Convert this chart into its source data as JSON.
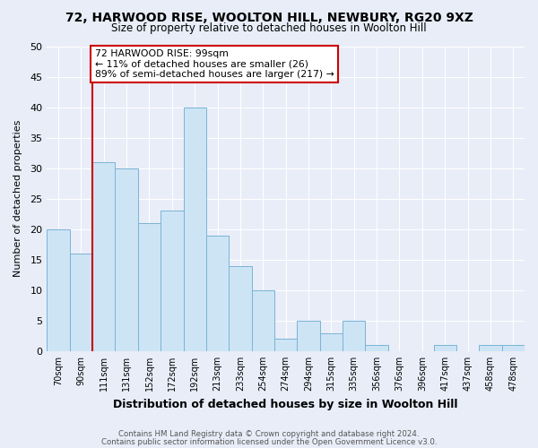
{
  "title1": "72, HARWOOD RISE, WOOLTON HILL, NEWBURY, RG20 9XZ",
  "title2": "Size of property relative to detached houses in Woolton Hill",
  "xlabel": "Distribution of detached houses by size in Woolton Hill",
  "ylabel": "Number of detached properties",
  "footer1": "Contains HM Land Registry data © Crown copyright and database right 2024.",
  "footer2": "Contains public sector information licensed under the Open Government Licence v3.0.",
  "bin_labels": [
    "70sqm",
    "90sqm",
    "111sqm",
    "131sqm",
    "152sqm",
    "172sqm",
    "192sqm",
    "213sqm",
    "233sqm",
    "254sqm",
    "274sqm",
    "294sqm",
    "315sqm",
    "335sqm",
    "356sqm",
    "376sqm",
    "396sqm",
    "417sqm",
    "437sqm",
    "458sqm",
    "478sqm"
  ],
  "bar_values": [
    20,
    16,
    31,
    30,
    21,
    23,
    40,
    19,
    14,
    10,
    2,
    5,
    3,
    5,
    1,
    0,
    0,
    1,
    0,
    1,
    1
  ],
  "bar_color": "#cde4f5",
  "bar_edge_color": "#7ab4d4",
  "vline_x_idx": 1,
  "vline_color": "#cc0000",
  "annotation_title": "72 HARWOOD RISE: 99sqm",
  "annotation_line1": "← 11% of detached houses are smaller (26)",
  "annotation_line2": "89% of semi-detached houses are larger (217) →",
  "annotation_box_color": "#cc0000",
  "ylim": [
    0,
    50
  ],
  "yticks": [
    0,
    5,
    10,
    15,
    20,
    25,
    30,
    35,
    40,
    45,
    50
  ],
  "background_color": "#e8edf8",
  "plot_bg_color": "#e8edf8",
  "grid_color": "#ffffff"
}
